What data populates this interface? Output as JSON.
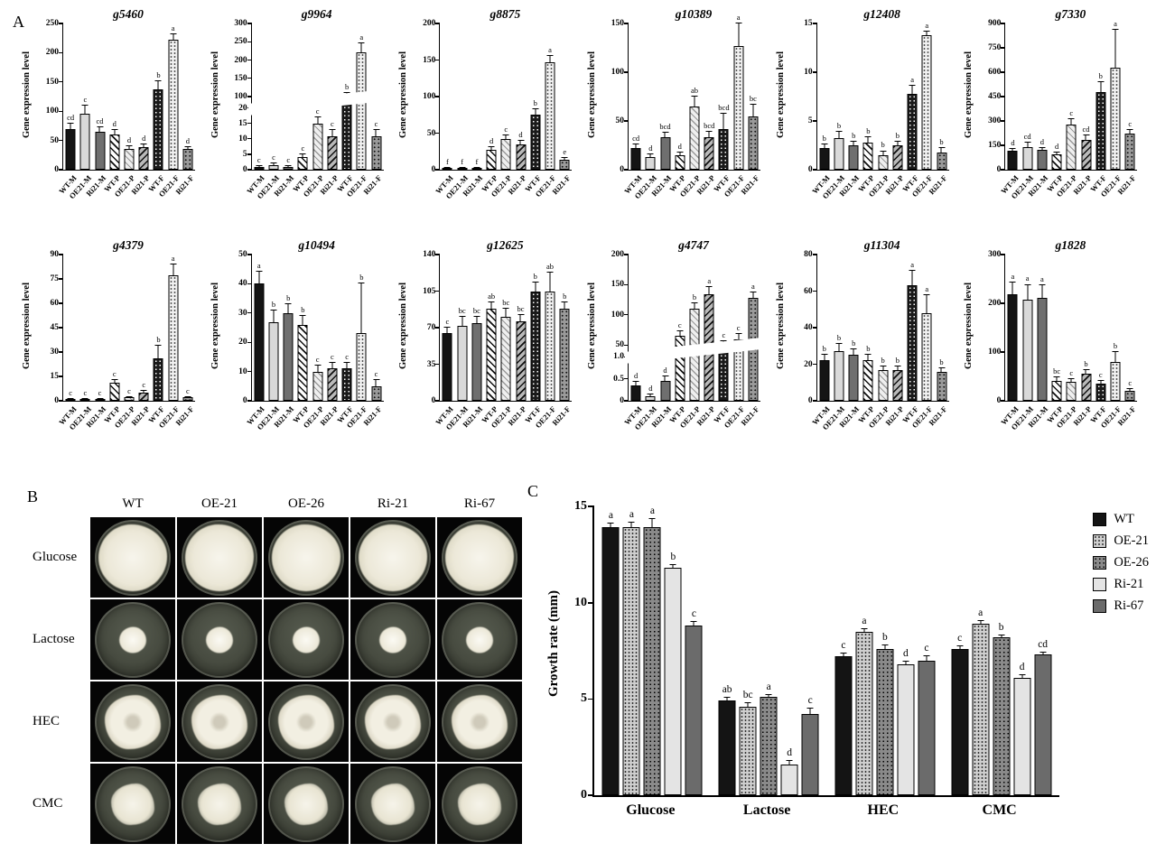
{
  "panels": {
    "a_label": "A",
    "b_label": "B",
    "c_label": "C"
  },
  "chart_data": {
    "panel_a": {
      "type": "bar",
      "ylabel": "Gene expression level",
      "categories": [
        "WT-M",
        "OE21-M",
        "Ri21-M",
        "WT-P",
        "OE21-P",
        "Ri21-P",
        "WT-F",
        "OE21-F",
        "Ri21-F"
      ],
      "charts": [
        {
          "gene": "g5460",
          "axis": {
            "max": 250,
            "ticks": [
              "0",
              "50",
              "100",
              "150",
              "200",
              "250"
            ]
          },
          "values": [
            70,
            95,
            65,
            60,
            35,
            38,
            137,
            222,
            35
          ],
          "errors": [
            8,
            15,
            8,
            8,
            5,
            5,
            15,
            10,
            4
          ],
          "letters": [
            "cd",
            "c",
            "cd",
            "d",
            "d",
            "d",
            "b",
            "a",
            "d"
          ]
        },
        {
          "gene": "g9964",
          "axis": {
            "segments": [
              {
                "min": 0,
                "max": 20,
                "ticks": [
                  "0",
                  "5",
                  "10",
                  "15",
                  "20"
                ],
                "frac": 0.42
              },
              {
                "min": 100,
                "max": 300,
                "ticks": [
                  "100",
                  "150",
                  "200",
                  "250",
                  "300"
                ],
                "frac": 0.5
              }
            ]
          },
          "values": [
            1,
            1.5,
            1,
            4,
            15,
            11,
            100,
            220,
            11
          ],
          "errors": [
            0.3,
            0.5,
            0.3,
            1,
            2,
            2,
            10,
            25,
            2
          ],
          "letters": [
            "c",
            "c",
            "c",
            "c",
            "c",
            "c",
            "b",
            "a",
            "c"
          ]
        },
        {
          "gene": "g8875",
          "axis": {
            "max": 200,
            "ticks": [
              "0",
              "50",
              "100",
              "150",
              "200"
            ]
          },
          "values": [
            2,
            2,
            2,
            27,
            42,
            35,
            75,
            147,
            13
          ],
          "errors": [
            1,
            1,
            1,
            4,
            5,
            5,
            8,
            8,
            3
          ],
          "letters": [
            "f",
            "f",
            "f",
            "d",
            "c",
            "d",
            "b",
            "a",
            "e"
          ]
        },
        {
          "gene": "g10389",
          "axis": {
            "max": 150,
            "ticks": [
              "0",
              "50",
              "100",
              "150"
            ]
          },
          "values": [
            22,
            13,
            33,
            15,
            65,
            33,
            42,
            127,
            55
          ],
          "errors": [
            4,
            3,
            5,
            3,
            10,
            6,
            15,
            25,
            12
          ],
          "letters": [
            "cd",
            "d",
            "bcd",
            "d",
            "ab",
            "bcd",
            "bcd",
            "a",
            "bc"
          ]
        },
        {
          "gene": "g12408",
          "axis": {
            "max": 15,
            "ticks": [
              "0",
              "5",
              "10",
              "15"
            ]
          },
          "values": [
            2.2,
            3.2,
            2.5,
            2.8,
            1.5,
            2.5,
            7.8,
            13.8,
            1.8
          ],
          "errors": [
            0.4,
            0.7,
            0.4,
            0.5,
            0.4,
            0.4,
            0.8,
            0.4,
            0.4
          ],
          "letters": [
            "b",
            "b",
            "b",
            "b",
            "b",
            "b",
            "a",
            "a",
            "b"
          ]
        },
        {
          "gene": "g7330",
          "axis": {
            "max": 900,
            "ticks": [
              "0",
              "150",
              "300",
              "450",
              "600",
              "750",
              "900"
            ]
          },
          "values": [
            115,
            140,
            120,
            95,
            280,
            185,
            480,
            630,
            220
          ],
          "errors": [
            15,
            25,
            15,
            12,
            30,
            25,
            60,
            230,
            25
          ],
          "letters": [
            "d",
            "cd",
            "d",
            "d",
            "c",
            "cd",
            "b",
            "a",
            "c"
          ]
        },
        {
          "gene": "g4379",
          "axis": {
            "max": 90,
            "ticks": [
              "0",
              "15",
              "30",
              "45",
              "60",
              "75",
              "90"
            ]
          },
          "values": [
            1,
            1,
            1,
            11,
            2,
            5,
            26,
            77,
            2
          ],
          "errors": [
            0.3,
            0.3,
            0.3,
            2,
            0.5,
            1,
            8,
            7,
            0.5
          ],
          "letters": [
            "c",
            "c",
            "c",
            "c",
            "c",
            "c",
            "b",
            "a",
            "c"
          ]
        },
        {
          "gene": "g10494",
          "axis": {
            "max": 50,
            "ticks": [
              "0",
              "10",
              "20",
              "30",
              "40",
              "50"
            ]
          },
          "values": [
            40,
            27,
            30,
            26,
            10,
            11,
            11,
            23,
            5
          ],
          "errors": [
            4,
            4,
            3,
            3,
            2,
            2,
            2,
            17,
            2
          ],
          "letters": [
            "a",
            "b",
            "b",
            "b",
            "c",
            "c",
            "c",
            "b",
            "c"
          ]
        },
        {
          "gene": "g12625",
          "axis": {
            "max": 140,
            "ticks": [
              "0",
              "35",
              "70",
              "105",
              "140"
            ]
          },
          "values": [
            65,
            72,
            74,
            88,
            80,
            76,
            105,
            105,
            88
          ],
          "errors": [
            5,
            8,
            6,
            6,
            8,
            6,
            8,
            18,
            6
          ],
          "letters": [
            "c",
            "bc",
            "bc",
            "ab",
            "bc",
            "bc",
            "b",
            "ab",
            "b"
          ]
        },
        {
          "gene": "g4747",
          "axis": {
            "segments": [
              {
                "min": 0,
                "max": 1.0,
                "ticks": [
                  "0",
                  "0.5",
                  "1.0"
                ],
                "frac": 0.3
              },
              {
                "min": 50,
                "max": 200,
                "ticks": [
                  "50",
                  "100",
                  "150",
                  "200"
                ],
                "frac": 0.62
              }
            ]
          },
          "values": [
            0.35,
            0.1,
            0.45,
            65,
            110,
            135,
            50,
            60,
            128
          ],
          "errors": [
            0.08,
            0.04,
            0.1,
            8,
            10,
            12,
            6,
            8,
            10
          ],
          "letters": [
            "d",
            "d",
            "d",
            "c",
            "b",
            "a",
            "c",
            "c",
            "a"
          ]
        },
        {
          "gene": "g11304",
          "axis": {
            "max": 80,
            "ticks": [
              "0",
              "20",
              "40",
              "60",
              "80"
            ]
          },
          "values": [
            22,
            27,
            25,
            22,
            17,
            17,
            63,
            48,
            16
          ],
          "errors": [
            3,
            4,
            3,
            3,
            2,
            2,
            8,
            10,
            2
          ],
          "letters": [
            "b",
            "b",
            "b",
            "b",
            "b",
            "b",
            "a",
            "a",
            "b"
          ]
        },
        {
          "gene": "g1828",
          "axis": {
            "max": 300,
            "ticks": [
              "0",
              "100",
              "200",
              "300"
            ]
          },
          "values": [
            218,
            208,
            212,
            40,
            38,
            55,
            35,
            80,
            20
          ],
          "errors": [
            25,
            30,
            25,
            8,
            6,
            8,
            6,
            20,
            5
          ],
          "letters": [
            "a",
            "a",
            "a",
            "bc",
            "c",
            "b",
            "c",
            "b",
            "c"
          ]
        }
      ]
    },
    "panel_c": {
      "type": "bar",
      "ylabel": "Growth rate (mm)",
      "ylim": [
        0,
        15
      ],
      "yticks": [
        "0",
        "5",
        "10",
        "15"
      ],
      "categories": [
        "Glucose",
        "Lactose",
        "HEC",
        "CMC"
      ],
      "series": [
        {
          "name": "WT",
          "values": [
            13.9,
            4.9,
            7.2,
            7.6
          ],
          "errors": [
            0.2,
            0.15,
            0.15,
            0.12
          ]
        },
        {
          "name": "OE-21",
          "values": [
            13.9,
            4.6,
            8.5,
            8.9
          ],
          "errors": [
            0.25,
            0.2,
            0.12,
            0.15
          ]
        },
        {
          "name": "OE-26",
          "values": [
            13.9,
            5.1,
            7.6,
            8.2
          ],
          "errors": [
            0.45,
            0.12,
            0.2,
            0.12
          ]
        },
        {
          "name": "Ri-21",
          "values": [
            11.8,
            1.6,
            6.8,
            6.1
          ],
          "errors": [
            0.15,
            0.18,
            0.15,
            0.15
          ]
        },
        {
          "name": "Ri-67",
          "values": [
            8.8,
            4.2,
            7.0,
            7.3
          ],
          "errors": [
            0.2,
            0.3,
            0.2,
            0.12
          ]
        }
      ],
      "letters": [
        [
          "a",
          "a",
          "a",
          "b",
          "c"
        ],
        [
          "ab",
          "bc",
          "a",
          "d",
          "c"
        ],
        [
          "c",
          "a",
          "b",
          "d",
          "c"
        ],
        [
          "c",
          "a",
          "b",
          "d",
          "cd"
        ]
      ],
      "legend_position": "right"
    }
  },
  "panel_b": {
    "columns": [
      "WT",
      "OE-21",
      "OE-26",
      "Ri-21",
      "Ri-67"
    ],
    "rows": [
      "Glucose",
      "Lactose",
      "HEC",
      "CMC"
    ]
  }
}
